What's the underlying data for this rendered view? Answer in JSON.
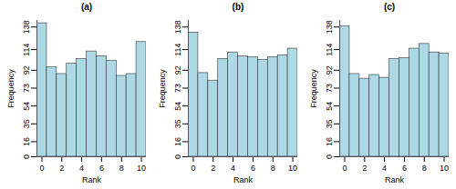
{
  "chart_data": [
    {
      "type": "histogram",
      "title": "(a)",
      "xlabel": "Rank",
      "ylabel": "Frequency",
      "bins": [
        -0.5,
        0.5,
        1.5,
        2.5,
        3.5,
        4.5,
        5.5,
        6.5,
        7.5,
        8.5,
        9.5,
        10.5
      ],
      "values": [
        142,
        95,
        88,
        99,
        104,
        112,
        107,
        102,
        86,
        88,
        122
      ],
      "color": "#add8e6",
      "xlim": [
        -0.5,
        10.5
      ],
      "ylim": [
        0,
        145
      ],
      "xticks": [
        0,
        2,
        4,
        6,
        8,
        10
      ],
      "yticks": [
        0,
        16,
        35,
        54,
        73,
        92,
        114,
        138
      ]
    },
    {
      "type": "histogram",
      "title": "(b)",
      "xlabel": "Rank",
      "ylabel": "Frequency",
      "bins": [
        -0.5,
        0.5,
        1.5,
        2.5,
        3.5,
        4.5,
        5.5,
        6.5,
        7.5,
        8.5,
        9.5,
        10.5
      ],
      "values": [
        132,
        89,
        81,
        104,
        111,
        107,
        106,
        103,
        106,
        108,
        115
      ],
      "color": "#add8e6",
      "xlim": [
        -0.5,
        10.5
      ],
      "ylim": [
        0,
        145
      ],
      "xticks": [
        0,
        2,
        4,
        6,
        8,
        10
      ],
      "yticks": [
        0,
        16,
        35,
        54,
        73,
        92,
        114,
        138
      ]
    },
    {
      "type": "histogram",
      "title": "(c)",
      "xlabel": "Rank",
      "ylabel": "Frequency",
      "bins": [
        -0.5,
        0.5,
        1.5,
        2.5,
        3.5,
        4.5,
        5.5,
        6.5,
        7.5,
        8.5,
        9.5,
        10.5
      ],
      "values": [
        139,
        88,
        83,
        87,
        84,
        104,
        105,
        115,
        120,
        111,
        110
      ],
      "color": "#add8e6",
      "xlim": [
        -0.5,
        10.5
      ],
      "ylim": [
        0,
        145
      ],
      "xticks": [
        0,
        2,
        4,
        6,
        8,
        10
      ],
      "yticks": [
        0,
        16,
        35,
        54,
        73,
        92,
        114,
        138
      ]
    }
  ]
}
